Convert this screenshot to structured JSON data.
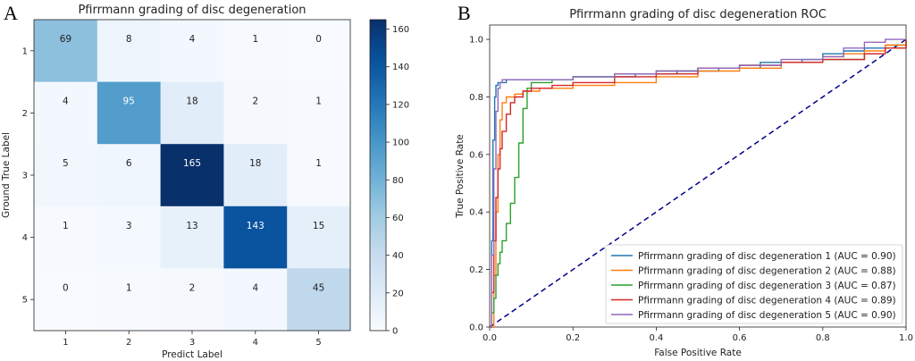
{
  "panels": {
    "a": "A",
    "b": "B"
  },
  "chart_data": [
    {
      "type": "heatmap",
      "title": "Pfirrmann grading of disc degeneration",
      "xlabel": "Predict Label",
      "ylabel": "Ground True Label",
      "x_categories": [
        "1",
        "2",
        "3",
        "4",
        "5"
      ],
      "y_categories": [
        "1",
        "2",
        "3",
        "4",
        "5"
      ],
      "matrix": [
        [
          69,
          8,
          4,
          1,
          0
        ],
        [
          4,
          95,
          18,
          2,
          1
        ],
        [
          5,
          6,
          165,
          18,
          1
        ],
        [
          1,
          3,
          13,
          143,
          15
        ],
        [
          0,
          1,
          2,
          4,
          45
        ]
      ],
      "colormap": "Blues",
      "colorbar_range": [
        0,
        165
      ],
      "colorbar_ticks": [
        0,
        20,
        40,
        60,
        80,
        100,
        120,
        140,
        160
      ]
    },
    {
      "type": "line",
      "title": "Pfirrmann grading of disc degeneration ROC",
      "xlabel": "False Positive Rate",
      "ylabel": "True Positive Rate",
      "xlim": [
        0,
        1.0
      ],
      "ylim": [
        0,
        1.05
      ],
      "x_ticks": [
        "0.0",
        "0.2",
        "0.4",
        "0.6",
        "0.8",
        "1.0"
      ],
      "y_ticks": [
        "0.0",
        "0.2",
        "0.4",
        "0.6",
        "0.8",
        "1.0"
      ],
      "legend_position": "bottom-right",
      "diagonal": {
        "color": "#00008b",
        "style": "dashed"
      },
      "series": [
        {
          "name": "Pfirrmann grading of disc degeneration  1 (AUC = 0.90)",
          "color": "#1f77b4",
          "x": [
            0,
            0.005,
            0.008,
            0.012,
            0.015,
            0.02,
            0.04,
            0.08,
            0.15,
            0.2,
            0.3,
            0.35,
            0.45,
            0.55,
            0.65,
            0.75,
            0.8,
            0.85,
            0.9,
            0.95,
            1.0
          ],
          "y": [
            0,
            0.3,
            0.65,
            0.8,
            0.84,
            0.85,
            0.86,
            0.86,
            0.86,
            0.87,
            0.87,
            0.88,
            0.89,
            0.9,
            0.92,
            0.93,
            0.95,
            0.96,
            0.97,
            0.98,
            1.0
          ]
        },
        {
          "name": "Pfirrmann grading of disc degeneration  2 (AUC = 0.88)",
          "color": "#ff7f0e",
          "x": [
            0,
            0.01,
            0.015,
            0.02,
            0.025,
            0.03,
            0.04,
            0.06,
            0.08,
            0.12,
            0.2,
            0.25,
            0.3,
            0.4,
            0.5,
            0.6,
            0.7,
            0.8,
            0.85,
            0.9,
            0.95,
            1.0
          ],
          "y": [
            0,
            0.18,
            0.4,
            0.6,
            0.72,
            0.78,
            0.8,
            0.81,
            0.82,
            0.83,
            0.84,
            0.84,
            0.85,
            0.87,
            0.89,
            0.9,
            0.92,
            0.94,
            0.95,
            0.96,
            0.98,
            1.0
          ]
        },
        {
          "name": "Pfirrmann grading of disc degeneration  3 (AUC = 0.87)",
          "color": "#2ca02c",
          "x": [
            0,
            0.005,
            0.01,
            0.015,
            0.02,
            0.025,
            0.03,
            0.04,
            0.05,
            0.06,
            0.07,
            0.08,
            0.09,
            0.1,
            0.15,
            0.2,
            0.3,
            0.4,
            0.5,
            0.6,
            0.7,
            0.8,
            0.9,
            0.95,
            1.0
          ],
          "y": [
            0,
            0.05,
            0.1,
            0.18,
            0.22,
            0.26,
            0.3,
            0.36,
            0.43,
            0.52,
            0.64,
            0.76,
            0.83,
            0.85,
            0.86,
            0.87,
            0.88,
            0.89,
            0.9,
            0.91,
            0.92,
            0.93,
            0.95,
            0.97,
            1.0
          ]
        },
        {
          "name": "Pfirrmann grading of disc degeneration  4 (AUC = 0.89)",
          "color": "#d62728",
          "x": [
            0,
            0.005,
            0.01,
            0.015,
            0.02,
            0.025,
            0.03,
            0.04,
            0.05,
            0.06,
            0.08,
            0.1,
            0.15,
            0.2,
            0.3,
            0.4,
            0.5,
            0.6,
            0.7,
            0.8,
            0.9,
            0.95,
            1.0
          ],
          "y": [
            0,
            0.12,
            0.3,
            0.45,
            0.55,
            0.62,
            0.68,
            0.74,
            0.78,
            0.8,
            0.82,
            0.83,
            0.84,
            0.85,
            0.87,
            0.88,
            0.9,
            0.91,
            0.92,
            0.93,
            0.95,
            0.97,
            1.0
          ]
        },
        {
          "name": "Pfirrmann grading of disc degeneration  5 (AUC = 0.90)",
          "color": "#9467bd",
          "x": [
            0,
            0.005,
            0.01,
            0.015,
            0.02,
            0.025,
            0.03,
            0.05,
            0.1,
            0.2,
            0.3,
            0.4,
            0.5,
            0.6,
            0.7,
            0.8,
            0.85,
            0.9,
            0.95,
            1.0
          ],
          "y": [
            0,
            0.25,
            0.55,
            0.75,
            0.83,
            0.85,
            0.86,
            0.86,
            0.86,
            0.87,
            0.88,
            0.89,
            0.9,
            0.91,
            0.93,
            0.94,
            0.97,
            0.99,
            1.0,
            1.0
          ]
        }
      ]
    }
  ]
}
